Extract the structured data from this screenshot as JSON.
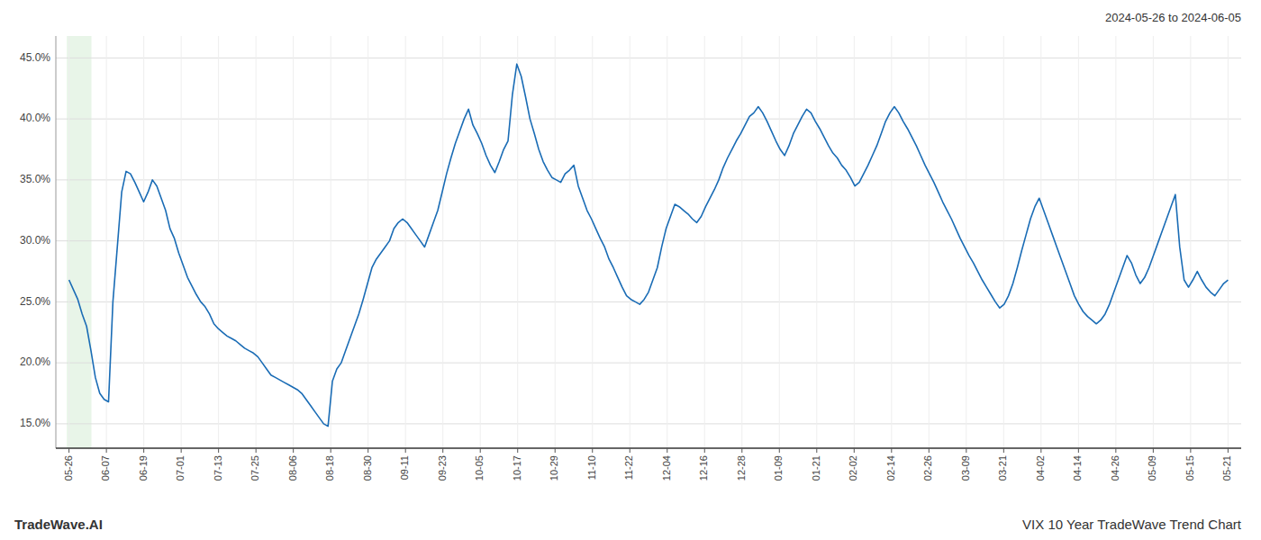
{
  "chart_data": {
    "type": "line",
    "title": "VIX 10 Year TradeWave Trend Chart",
    "subtitle": "2024-05-26 to 2024-06-05",
    "annotations": [
      "TradeWave.AI"
    ],
    "color": "#1a6cb5",
    "grid": true,
    "xlim": [
      -3,
      267
    ],
    "xticks": [
      {
        "value": 0,
        "label": "05-26"
      },
      {
        "value": 8.516129032258064,
        "label": "06-07"
      },
      {
        "value": 17.032258064516128,
        "label": "06-19"
      },
      {
        "value": 25.548387096774192,
        "label": "07-01"
      },
      {
        "value": 34.064516129032256,
        "label": "07-13"
      },
      {
        "value": 42.58064516129032,
        "label": "07-25"
      },
      {
        "value": 51.096774193548384,
        "label": "08-06"
      },
      {
        "value": 59.61290322580645,
        "label": "08-18"
      },
      {
        "value": 68.12903225806451,
        "label": "08-30"
      },
      {
        "value": 76.64516129032258,
        "label": "09-11"
      },
      {
        "value": 85.16129032258064,
        "label": "09-23"
      },
      {
        "value": 93.6774193548387,
        "label": "10-05"
      },
      {
        "value": 102.19354838709677,
        "label": "10-17"
      },
      {
        "value": 110.70967741935483,
        "label": "10-29"
      },
      {
        "value": 119.2258064516129,
        "label": "11-10"
      },
      {
        "value": 127.74193548387096,
        "label": "11-22"
      },
      {
        "value": 136.25806451612902,
        "label": "12-04"
      },
      {
        "value": 144.7741935483871,
        "label": "12-16"
      },
      {
        "value": 153.29032258064515,
        "label": "12-28"
      },
      {
        "value": 161.80645161290323,
        "label": "01-09"
      },
      {
        "value": 170.32258064516128,
        "label": "01-21"
      },
      {
        "value": 178.83870967741936,
        "label": "02-02"
      },
      {
        "value": 187.3548387096774,
        "label": "02-14"
      },
      {
        "value": 195.8709677419355,
        "label": "02-26"
      },
      {
        "value": 204.38709677419354,
        "label": "03-09"
      },
      {
        "value": 212.90322580645162,
        "label": "03-21"
      },
      {
        "value": 221.41935483870967,
        "label": "04-02"
      },
      {
        "value": 229.93548387096774,
        "label": "04-14"
      },
      {
        "value": 238.4516129032258,
        "label": "04-26"
      },
      {
        "value": 246.96774193548387,
        "label": "05-09"
      },
      {
        "value": 255.48387096774192,
        "label": "05-15"
      },
      {
        "value": 264,
        "label": "05-21"
      }
    ],
    "ylim": [
      0.13,
      0.468
    ],
    "yticks": [
      {
        "value": 0.15,
        "label": "15.0%"
      },
      {
        "value": 0.2,
        "label": "20.0%"
      },
      {
        "value": 0.25,
        "label": "25.0%"
      },
      {
        "value": 0.3,
        "label": "30.0%"
      },
      {
        "value": 0.35,
        "label": "35.0%"
      },
      {
        "value": 0.4,
        "label": "40.0%"
      },
      {
        "value": 0.45,
        "label": "45.0%"
      }
    ],
    "x": [
      0,
      1,
      2,
      3,
      4,
      5,
      6,
      7,
      8,
      9,
      10,
      11,
      12,
      13,
      14,
      15,
      16,
      17,
      18,
      19,
      20,
      21,
      22,
      23,
      24,
      25,
      26,
      27,
      28,
      29,
      30,
      31,
      32,
      33,
      34,
      35,
      36,
      37,
      38,
      39,
      40,
      41,
      42,
      43,
      44,
      45,
      46,
      47,
      48,
      49,
      50,
      51,
      52,
      53,
      54,
      55,
      56,
      57,
      58,
      59,
      60,
      61,
      62,
      63,
      64,
      65,
      66,
      67,
      68,
      69,
      70,
      71,
      72,
      73,
      74,
      75,
      76,
      77,
      78,
      79,
      80,
      81,
      82,
      83,
      84,
      85,
      86,
      87,
      88,
      89,
      90,
      91,
      92,
      93,
      94,
      95,
      96,
      97,
      98,
      99,
      100,
      101,
      102,
      103,
      104,
      105,
      106,
      107,
      108,
      109,
      110,
      111,
      112,
      113,
      114,
      115,
      116,
      117,
      118,
      119,
      120,
      121,
      122,
      123,
      124,
      125,
      126,
      127,
      128,
      129,
      130,
      131,
      132,
      133,
      134,
      135,
      136,
      137,
      138,
      139,
      140,
      141,
      142,
      143,
      144,
      145,
      146,
      147,
      148,
      149,
      150,
      151,
      152,
      153,
      154,
      155,
      156,
      157,
      158,
      159,
      160,
      161,
      162,
      163,
      164,
      165,
      166,
      167,
      168,
      169,
      170,
      171,
      172,
      173,
      174,
      175,
      176,
      177,
      178,
      179,
      180,
      181,
      182,
      183,
      184,
      185,
      186,
      187,
      188,
      189,
      190,
      191,
      192,
      193,
      194,
      195,
      196,
      197,
      198,
      199,
      200,
      201,
      202,
      203,
      204,
      205,
      206,
      207,
      208,
      209,
      210,
      211,
      212,
      213,
      214,
      215,
      216,
      217,
      218,
      219,
      220,
      221,
      222,
      223,
      224,
      225,
      226,
      227,
      228,
      229,
      230,
      231,
      232,
      233,
      234,
      235,
      236,
      237,
      238,
      239,
      240,
      241,
      242,
      243,
      244,
      245,
      246,
      247,
      248,
      249,
      250,
      251,
      252,
      253,
      254,
      255,
      256,
      257,
      258,
      259,
      260,
      261,
      262,
      263,
      264
    ],
    "values": [
      0.268,
      0.26,
      0.252,
      0.24,
      0.23,
      0.21,
      0.188,
      0.175,
      0.17,
      0.168,
      0.25,
      0.295,
      0.34,
      0.357,
      0.355,
      0.348,
      0.34,
      0.332,
      0.34,
      0.35,
      0.345,
      0.335,
      0.325,
      0.31,
      0.302,
      0.29,
      0.28,
      0.27,
      0.263,
      0.256,
      0.25,
      0.246,
      0.24,
      0.232,
      0.228,
      0.225,
      0.222,
      0.22,
      0.218,
      0.215,
      0.212,
      0.21,
      0.208,
      0.205,
      0.2,
      0.195,
      0.19,
      0.188,
      0.186,
      0.184,
      0.182,
      0.18,
      0.178,
      0.175,
      0.17,
      0.165,
      0.16,
      0.155,
      0.15,
      0.148,
      0.185,
      0.195,
      0.2,
      0.21,
      0.22,
      0.23,
      0.24,
      0.252,
      0.265,
      0.278,
      0.285,
      0.29,
      0.295,
      0.3,
      0.31,
      0.315,
      0.318,
      0.315,
      0.31,
      0.305,
      0.3,
      0.295,
      0.305,
      0.315,
      0.325,
      0.34,
      0.355,
      0.368,
      0.38,
      0.39,
      0.4,
      0.408,
      0.395,
      0.388,
      0.38,
      0.37,
      0.362,
      0.356,
      0.365,
      0.375,
      0.382,
      0.42,
      0.445,
      0.435,
      0.418,
      0.4,
      0.388,
      0.375,
      0.365,
      0.358,
      0.352,
      0.35,
      0.348,
      0.355,
      0.358,
      0.362,
      0.345,
      0.335,
      0.325,
      0.318,
      0.31,
      0.302,
      0.295,
      0.285,
      0.278,
      0.27,
      0.262,
      0.255,
      0.252,
      0.25,
      0.248,
      0.252,
      0.258,
      0.268,
      0.278,
      0.295,
      0.31,
      0.32,
      0.33,
      0.328,
      0.325,
      0.322,
      0.318,
      0.315,
      0.32,
      0.328,
      0.335,
      0.342,
      0.35,
      0.36,
      0.368,
      0.375,
      0.382,
      0.388,
      0.395,
      0.402,
      0.405,
      0.41,
      0.405,
      0.398,
      0.39,
      0.382,
      0.375,
      0.37,
      0.378,
      0.388,
      0.395,
      0.402,
      0.408,
      0.405,
      0.398,
      0.392,
      0.385,
      0.378,
      0.372,
      0.368,
      0.362,
      0.358,
      0.352,
      0.345,
      0.348,
      0.355,
      0.362,
      0.37,
      0.378,
      0.388,
      0.398,
      0.405,
      0.41,
      0.405,
      0.398,
      0.392,
      0.385,
      0.378,
      0.37,
      0.362,
      0.355,
      0.348,
      0.34,
      0.332,
      0.325,
      0.318,
      0.31,
      0.302,
      0.295,
      0.288,
      0.282,
      0.275,
      0.268,
      0.262,
      0.256,
      0.25,
      0.245,
      0.248,
      0.255,
      0.265,
      0.278,
      0.292,
      0.305,
      0.318,
      0.328,
      0.335,
      0.325,
      0.315,
      0.305,
      0.295,
      0.285,
      0.275,
      0.265,
      0.255,
      0.248,
      0.242,
      0.238,
      0.235,
      0.232,
      0.235,
      0.24,
      0.248,
      0.258,
      0.268,
      0.278,
      0.288,
      0.282,
      0.272,
      0.265,
      0.27,
      0.278,
      0.288,
      0.298,
      0.308,
      0.318,
      0.328,
      0.338,
      0.295,
      0.268,
      0.262,
      0.268,
      0.275,
      0.268,
      0.262,
      0.258,
      0.255,
      0.26,
      0.265,
      0.268
    ]
  }
}
